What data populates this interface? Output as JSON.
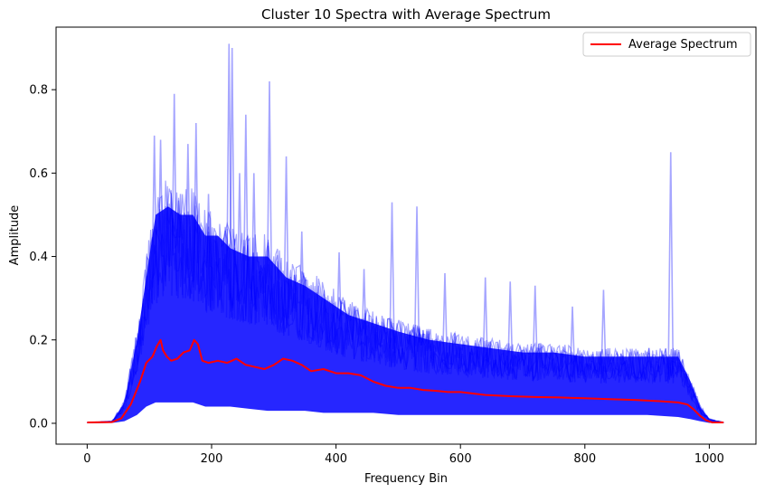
{
  "chart_data": {
    "type": "line",
    "title": "Cluster 10 Spectra with Average Spectrum",
    "xlabel": "Frequency Bin",
    "ylabel": "Amplitude",
    "xlim": [
      -50,
      1075
    ],
    "ylim": [
      -0.05,
      0.95
    ],
    "xticks": [
      0,
      200,
      400,
      600,
      800,
      1000
    ],
    "yticks": [
      0.0,
      0.2,
      0.4,
      0.6,
      0.8
    ],
    "grid": false,
    "legend_position": "top-right",
    "spectra_color": "#0000ff",
    "average_color": "#ff0000",
    "series": [
      {
        "name": "Average Spectrum",
        "x": [
          0,
          40,
          55,
          70,
          85,
          95,
          105,
          112,
          118,
          122,
          128,
          135,
          145,
          155,
          165,
          172,
          178,
          185,
          195,
          210,
          225,
          240,
          255,
          270,
          285,
          300,
          315,
          330,
          345,
          360,
          380,
          400,
          420,
          440,
          460,
          480,
          500,
          520,
          540,
          560,
          580,
          600,
          640,
          680,
          720,
          760,
          800,
          840,
          880,
          920,
          950,
          965,
          975,
          985,
          995,
          1005,
          1023
        ],
        "values": [
          0.002,
          0.003,
          0.012,
          0.045,
          0.1,
          0.145,
          0.16,
          0.185,
          0.2,
          0.175,
          0.16,
          0.15,
          0.155,
          0.17,
          0.175,
          0.2,
          0.19,
          0.15,
          0.145,
          0.15,
          0.145,
          0.155,
          0.14,
          0.135,
          0.13,
          0.14,
          0.155,
          0.15,
          0.14,
          0.125,
          0.13,
          0.12,
          0.12,
          0.115,
          0.1,
          0.09,
          0.085,
          0.085,
          0.08,
          0.078,
          0.075,
          0.075,
          0.068,
          0.065,
          0.063,
          0.062,
          0.06,
          0.058,
          0.056,
          0.053,
          0.05,
          0.045,
          0.033,
          0.018,
          0.007,
          0.002,
          0.002
        ]
      }
    ],
    "spectra_envelope": {
      "x": [
        0,
        40,
        60,
        80,
        95,
        110,
        130,
        150,
        170,
        190,
        210,
        230,
        260,
        290,
        320,
        350,
        380,
        420,
        460,
        500,
        550,
        600,
        650,
        700,
        750,
        800,
        850,
        900,
        950,
        970,
        985,
        1000,
        1023
      ],
      "upper": [
        0.002,
        0.005,
        0.05,
        0.2,
        0.35,
        0.5,
        0.52,
        0.5,
        0.5,
        0.45,
        0.45,
        0.42,
        0.4,
        0.4,
        0.35,
        0.33,
        0.3,
        0.26,
        0.24,
        0.22,
        0.2,
        0.19,
        0.18,
        0.17,
        0.17,
        0.16,
        0.16,
        0.16,
        0.16,
        0.1,
        0.04,
        0.01,
        0.002
      ],
      "lower": [
        0.0,
        0.001,
        0.005,
        0.02,
        0.04,
        0.05,
        0.05,
        0.05,
        0.05,
        0.04,
        0.04,
        0.04,
        0.035,
        0.03,
        0.03,
        0.03,
        0.025,
        0.025,
        0.025,
        0.02,
        0.02,
        0.02,
        0.02,
        0.02,
        0.02,
        0.02,
        0.02,
        0.02,
        0.015,
        0.01,
        0.005,
        0.001,
        0.0
      ]
    },
    "spectra_peaks": [
      {
        "x": 108,
        "y": 0.69
      },
      {
        "x": 118,
        "y": 0.68
      },
      {
        "x": 140,
        "y": 0.79
      },
      {
        "x": 150,
        "y": 0.55
      },
      {
        "x": 162,
        "y": 0.67
      },
      {
        "x": 175,
        "y": 0.72
      },
      {
        "x": 195,
        "y": 0.55
      },
      {
        "x": 228,
        "y": 0.91
      },
      {
        "x": 233,
        "y": 0.9
      },
      {
        "x": 245,
        "y": 0.6
      },
      {
        "x": 255,
        "y": 0.74
      },
      {
        "x": 268,
        "y": 0.6
      },
      {
        "x": 293,
        "y": 0.82
      },
      {
        "x": 320,
        "y": 0.64
      },
      {
        "x": 345,
        "y": 0.46
      },
      {
        "x": 405,
        "y": 0.41
      },
      {
        "x": 445,
        "y": 0.37
      },
      {
        "x": 490,
        "y": 0.53
      },
      {
        "x": 530,
        "y": 0.52
      },
      {
        "x": 575,
        "y": 0.36
      },
      {
        "x": 640,
        "y": 0.35
      },
      {
        "x": 680,
        "y": 0.34
      },
      {
        "x": 720,
        "y": 0.33
      },
      {
        "x": 780,
        "y": 0.28
      },
      {
        "x": 830,
        "y": 0.32
      },
      {
        "x": 938,
        "y": 0.65
      }
    ]
  }
}
